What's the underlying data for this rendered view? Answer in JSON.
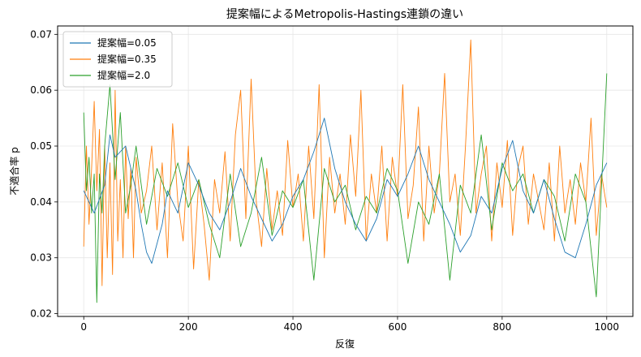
{
  "chart_data": {
    "type": "line",
    "title": "提案幅によるMetropolis-Hastings連鎖の違い",
    "xlabel": "反復",
    "ylabel": "不適合率 p",
    "xlim": [
      -50,
      1050
    ],
    "ylim": [
      0.0195,
      0.0715
    ],
    "x_ticks": [
      0,
      200,
      400,
      600,
      800,
      1000
    ],
    "x_tick_labels": [
      "0",
      "200",
      "400",
      "600",
      "800",
      "1000"
    ],
    "y_ticks": [
      0.02,
      0.03,
      0.04,
      0.05,
      0.06,
      0.07
    ],
    "y_tick_labels": [
      "0.02",
      "0.03",
      "0.04",
      "0.05",
      "0.06",
      "0.07"
    ],
    "grid": true,
    "legend_position": "top-left",
    "series": [
      {
        "name": "提案幅=0.05",
        "color": "#1f77b4",
        "x": [
          0,
          20,
          40,
          50,
          60,
          80,
          100,
          110,
          120,
          130,
          150,
          160,
          180,
          200,
          220,
          240,
          260,
          280,
          300,
          320,
          340,
          360,
          380,
          400,
          420,
          440,
          460,
          480,
          500,
          520,
          540,
          560,
          580,
          600,
          620,
          640,
          660,
          680,
          700,
          720,
          740,
          760,
          780,
          800,
          820,
          840,
          860,
          880,
          900,
          920,
          940,
          960,
          980,
          1000
        ],
        "y": [
          0.042,
          0.038,
          0.043,
          0.052,
          0.048,
          0.05,
          0.042,
          0.036,
          0.031,
          0.029,
          0.036,
          0.042,
          0.038,
          0.047,
          0.043,
          0.038,
          0.035,
          0.04,
          0.046,
          0.041,
          0.037,
          0.033,
          0.036,
          0.041,
          0.044,
          0.049,
          0.055,
          0.046,
          0.04,
          0.036,
          0.033,
          0.037,
          0.044,
          0.041,
          0.045,
          0.05,
          0.044,
          0.04,
          0.036,
          0.031,
          0.034,
          0.041,
          0.038,
          0.046,
          0.051,
          0.042,
          0.038,
          0.044,
          0.037,
          0.031,
          0.03,
          0.036,
          0.043,
          0.047
        ]
      },
      {
        "name": "提案幅=0.35",
        "color": "#ff7f0e",
        "x": [
          0,
          5,
          10,
          15,
          20,
          25,
          30,
          35,
          40,
          45,
          50,
          55,
          60,
          65,
          70,
          75,
          80,
          85,
          90,
          95,
          100,
          110,
          120,
          130,
          140,
          150,
          160,
          170,
          180,
          190,
          200,
          210,
          220,
          230,
          240,
          250,
          260,
          270,
          280,
          290,
          300,
          310,
          320,
          330,
          340,
          350,
          360,
          370,
          380,
          390,
          400,
          410,
          420,
          430,
          440,
          450,
          460,
          470,
          480,
          490,
          500,
          510,
          520,
          530,
          540,
          550,
          560,
          570,
          580,
          590,
          600,
          610,
          620,
          630,
          640,
          650,
          660,
          670,
          680,
          690,
          700,
          710,
          720,
          730,
          740,
          750,
          760,
          770,
          780,
          790,
          800,
          810,
          820,
          830,
          840,
          850,
          860,
          870,
          880,
          890,
          900,
          910,
          920,
          930,
          940,
          950,
          960,
          970,
          980,
          990,
          1000
        ],
        "y": [
          0.032,
          0.05,
          0.036,
          0.046,
          0.058,
          0.042,
          0.053,
          0.025,
          0.05,
          0.03,
          0.047,
          0.027,
          0.06,
          0.033,
          0.044,
          0.03,
          0.05,
          0.037,
          0.046,
          0.03,
          0.048,
          0.038,
          0.042,
          0.05,
          0.035,
          0.047,
          0.03,
          0.054,
          0.04,
          0.033,
          0.05,
          0.028,
          0.044,
          0.036,
          0.026,
          0.044,
          0.038,
          0.049,
          0.033,
          0.052,
          0.06,
          0.037,
          0.062,
          0.04,
          0.032,
          0.046,
          0.035,
          0.042,
          0.034,
          0.051,
          0.039,
          0.045,
          0.033,
          0.05,
          0.037,
          0.061,
          0.03,
          0.048,
          0.038,
          0.045,
          0.036,
          0.052,
          0.041,
          0.06,
          0.033,
          0.045,
          0.038,
          0.05,
          0.033,
          0.048,
          0.041,
          0.061,
          0.037,
          0.043,
          0.057,
          0.033,
          0.05,
          0.038,
          0.045,
          0.063,
          0.04,
          0.045,
          0.034,
          0.05,
          0.069,
          0.038,
          0.045,
          0.05,
          0.033,
          0.047,
          0.039,
          0.051,
          0.034,
          0.046,
          0.05,
          0.036,
          0.045,
          0.04,
          0.035,
          0.047,
          0.033,
          0.05,
          0.038,
          0.044,
          0.036,
          0.047,
          0.04,
          0.055,
          0.034,
          0.045,
          0.039
        ]
      },
      {
        "name": "提案幅=2.0",
        "color": "#2ca02c",
        "x": [
          0,
          5,
          10,
          15,
          20,
          25,
          30,
          35,
          40,
          50,
          60,
          70,
          80,
          90,
          100,
          120,
          140,
          160,
          180,
          200,
          220,
          240,
          260,
          280,
          300,
          320,
          340,
          360,
          380,
          400,
          420,
          440,
          460,
          480,
          500,
          520,
          540,
          560,
          580,
          600,
          620,
          640,
          660,
          680,
          700,
          720,
          740,
          760,
          780,
          800,
          820,
          840,
          860,
          880,
          900,
          920,
          940,
          960,
          980,
          1000
        ],
        "y": [
          0.056,
          0.042,
          0.048,
          0.038,
          0.045,
          0.022,
          0.045,
          0.038,
          0.05,
          0.061,
          0.044,
          0.056,
          0.038,
          0.043,
          0.05,
          0.036,
          0.046,
          0.041,
          0.047,
          0.039,
          0.044,
          0.036,
          0.03,
          0.045,
          0.032,
          0.038,
          0.048,
          0.034,
          0.042,
          0.039,
          0.044,
          0.026,
          0.046,
          0.04,
          0.043,
          0.035,
          0.041,
          0.038,
          0.046,
          0.042,
          0.029,
          0.04,
          0.036,
          0.045,
          0.026,
          0.043,
          0.038,
          0.052,
          0.035,
          0.047,
          0.042,
          0.045,
          0.038,
          0.044,
          0.041,
          0.033,
          0.045,
          0.04,
          0.023,
          0.063
        ]
      }
    ]
  }
}
